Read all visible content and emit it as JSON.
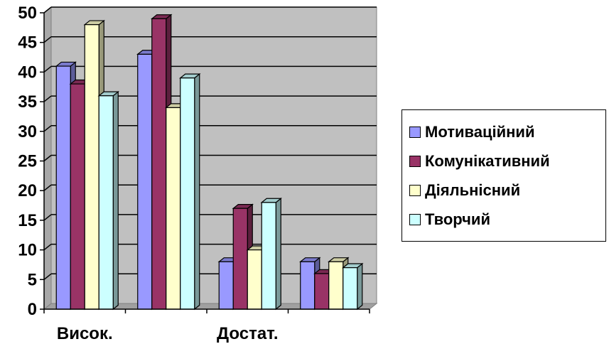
{
  "chart_data": {
    "type": "bar",
    "categories": [
      "Висок.",
      "",
      "Достат.",
      ""
    ],
    "series": [
      {
        "name": "Мотиваційний",
        "values": [
          41,
          43,
          8,
          8
        ],
        "color": "#9999FF"
      },
      {
        "name": "Комунікативний",
        "values": [
          38,
          49,
          17,
          6
        ],
        "color": "#993366"
      },
      {
        "name": "Діяльнісний",
        "values": [
          48,
          34,
          10,
          8
        ],
        "color": "#FFFFCC"
      },
      {
        "name": "Творчий",
        "values": [
          36,
          39,
          18,
          7
        ],
        "color": "#CCFFFF"
      }
    ],
    "y_ticks": [
      "0",
      "5",
      "10",
      "15",
      "20",
      "25",
      "30",
      "35",
      "40",
      "45",
      "50"
    ],
    "ylim": [
      0,
      50
    ],
    "grid": true,
    "plot_background": "#C0C0C0",
    "legend_position": "right"
  }
}
